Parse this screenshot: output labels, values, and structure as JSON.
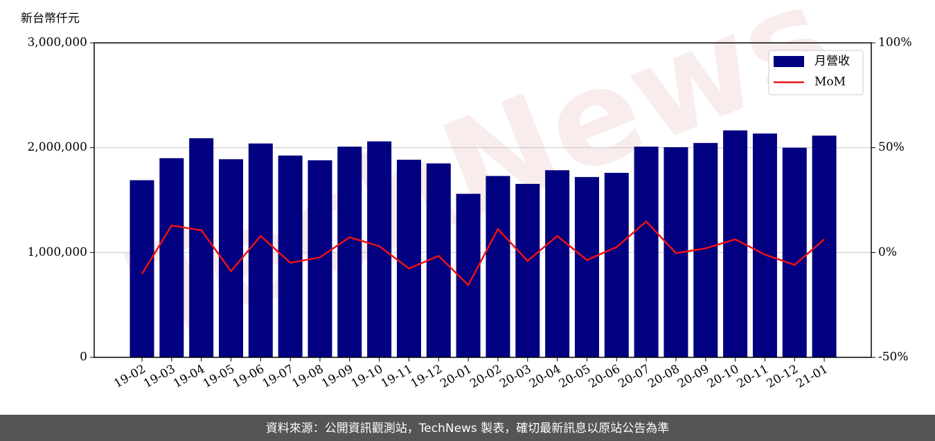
{
  "chart_data": {
    "type": "bar",
    "y_label": "新台幣仟元",
    "footer": "資料來源：公開資訊觀測站，TechNews 製表，確切最新訊息以原站公告為準",
    "watermark": "TechNews",
    "categories": [
      "19-02",
      "19-03",
      "19-04",
      "19-05",
      "19-06",
      "19-07",
      "19-08",
      "19-09",
      "19-10",
      "19-11",
      "19-12",
      "20-01",
      "20-02",
      "20-03",
      "20-04",
      "20-05",
      "20-06",
      "20-07",
      "20-08",
      "20-09",
      "20-10",
      "20-11",
      "20-12",
      "21-01"
    ],
    "series": [
      {
        "name": "月營收",
        "type": "bar",
        "color": "#000080",
        "values": [
          1690000,
          1900000,
          2090000,
          1890000,
          2040000,
          1925000,
          1880000,
          2010000,
          2060000,
          1885000,
          1850000,
          1560000,
          1730000,
          1655000,
          1785000,
          1720000,
          1760000,
          2010000,
          2005000,
          2045000,
          2165000,
          2135000,
          2000000,
          2115000
        ]
      },
      {
        "name": "MoM",
        "type": "line",
        "axis": "y2",
        "color": "#ee1111",
        "values": [
          -10.2,
          12.9,
          10.6,
          -8.9,
          7.9,
          -4.9,
          -2.3,
          7.3,
          3.0,
          -7.6,
          -1.6,
          -15.5,
          11.2,
          -4.0,
          7.9,
          -3.6,
          2.6,
          14.8,
          -0.3,
          2.0,
          6.3,
          -1.0,
          -5.9,
          6.3
        ]
      }
    ],
    "ylim": [
      0,
      3000000
    ],
    "yticks": [
      0,
      {
        "value": 1000000,
        "label": "1,000,000"
      },
      {
        "value": 2000000,
        "label": "2,000,000"
      },
      {
        "value": 3000000,
        "label": "3,000,000"
      }
    ],
    "y2lim": [
      -50,
      100
    ],
    "y2ticks": [
      {
        "value": -50,
        "label": "-50%"
      },
      {
        "value": 0,
        "label": "0%"
      },
      {
        "value": 50,
        "label": "50%"
      },
      {
        "value": 100,
        "label": "100%"
      }
    ],
    "grid": true,
    "legend": "upper right"
  }
}
